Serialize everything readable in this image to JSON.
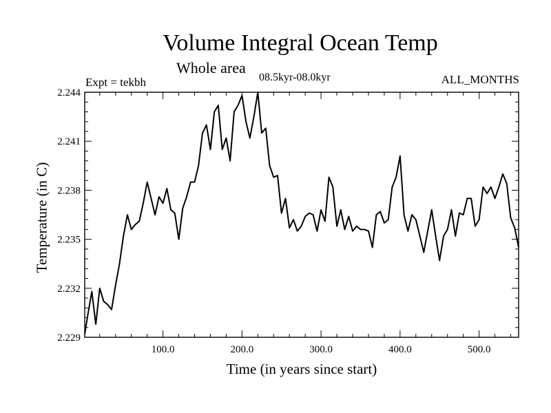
{
  "chart_data": {
    "type": "line",
    "title": "Volume Integral Ocean Temp",
    "subtitle": "Whole area",
    "left_annotation": "Expt = tekbh",
    "center_annotation": "08.5kyr-08.0kyr",
    "right_annotation": "ALL_MONTHS",
    "xlabel": "Time (in years since start)",
    "ylabel": "Temperature (in C)",
    "xlim": [
      1,
      550
    ],
    "ylim": [
      2.229,
      2.244
    ],
    "x_ticks": [
      100,
      200,
      300,
      400,
      500
    ],
    "x_tick_labels": [
      "100.0",
      "200.0",
      "300.0",
      "400.0",
      "500.0"
    ],
    "y_ticks": [
      2.229,
      2.232,
      2.235,
      2.238,
      2.241,
      2.244
    ],
    "y_tick_labels": [
      "2.229",
      "2.232",
      "2.235",
      "2.238",
      "2.241",
      "2.244"
    ],
    "grid": false,
    "series": [
      {
        "name": "Volume Integral Ocean Temp",
        "x": [
          1,
          5,
          10,
          15,
          20,
          25,
          30,
          35,
          40,
          45,
          50,
          55,
          60,
          65,
          70,
          75,
          80,
          85,
          90,
          95,
          100,
          105,
          110,
          115,
          120,
          125,
          130,
          135,
          140,
          145,
          150,
          155,
          160,
          165,
          170,
          175,
          180,
          185,
          190,
          195,
          200,
          205,
          210,
          215,
          220,
          225,
          230,
          235,
          240,
          245,
          250,
          255,
          260,
          265,
          270,
          275,
          280,
          285,
          290,
          295,
          300,
          305,
          310,
          315,
          320,
          325,
          330,
          335,
          340,
          345,
          350,
          355,
          360,
          365,
          370,
          375,
          380,
          385,
          390,
          395,
          400,
          405,
          410,
          415,
          420,
          425,
          430,
          435,
          440,
          445,
          450,
          455,
          460,
          465,
          470,
          475,
          480,
          485,
          490,
          495,
          500,
          505,
          510,
          515,
          520,
          525,
          530,
          535,
          540,
          545,
          550
        ],
        "values": [
          2.2292,
          2.2304,
          2.2318,
          2.2298,
          2.232,
          2.2312,
          2.231,
          2.2307,
          2.2322,
          2.2335,
          2.2352,
          2.2365,
          2.2356,
          2.2359,
          2.2361,
          2.2372,
          2.2385,
          2.2375,
          2.2365,
          2.2376,
          2.2372,
          2.2381,
          2.2368,
          2.2366,
          2.235,
          2.2369,
          2.2376,
          2.2385,
          2.2385,
          2.2395,
          2.2415,
          2.242,
          2.2405,
          2.2428,
          2.2432,
          2.2405,
          2.2412,
          2.2398,
          2.2428,
          2.2432,
          2.2438,
          2.2422,
          2.2412,
          2.2425,
          2.244,
          2.2415,
          2.2418,
          2.2395,
          2.2388,
          2.2389,
          2.2366,
          2.2375,
          2.2357,
          2.2362,
          2.2355,
          2.2358,
          2.2364,
          2.2366,
          2.2365,
          2.2355,
          2.2368,
          2.2361,
          2.2388,
          2.2382,
          2.2358,
          2.2368,
          2.2356,
          2.2364,
          2.2355,
          2.2358,
          2.2356,
          2.2356,
          2.2355,
          2.2345,
          2.2365,
          2.2367,
          2.236,
          2.2362,
          2.2382,
          2.2388,
          2.2401,
          2.2365,
          2.2355,
          2.2365,
          2.2362,
          2.2352,
          2.2342,
          2.2355,
          2.2368,
          2.2352,
          2.2337,
          2.2352,
          2.2356,
          2.2368,
          2.2352,
          2.2366,
          2.2365,
          2.2375,
          2.2375,
          2.2358,
          2.2362,
          2.2382,
          2.2378,
          2.2382,
          2.2375,
          2.2382,
          2.239,
          2.2384,
          2.2363,
          2.2357,
          2.2345
        ]
      }
    ]
  }
}
